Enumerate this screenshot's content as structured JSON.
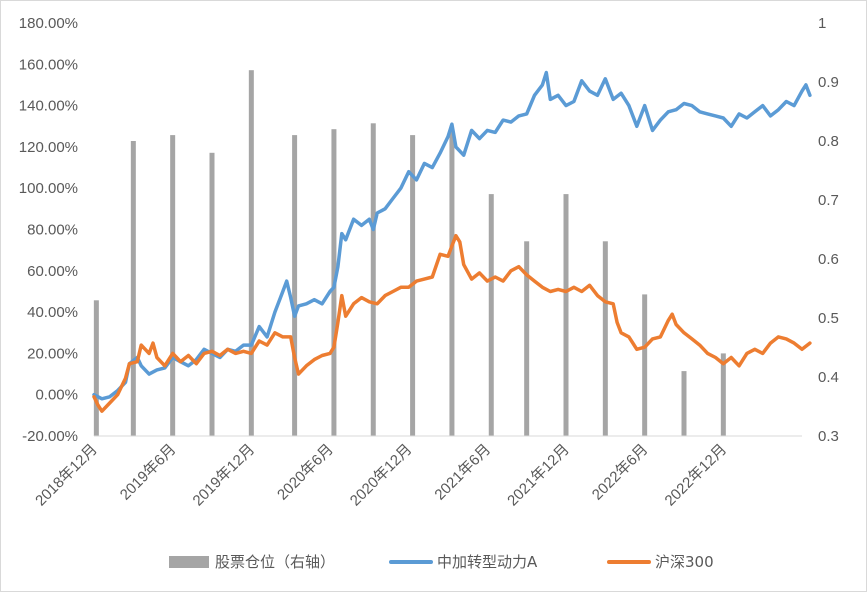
{
  "chart_data": {
    "type": "combo-bar-line",
    "title": "",
    "x_ticks": [
      "2018年12月",
      "2019年6月",
      "2019年12月",
      "2020年6月",
      "2020年12月",
      "2021年6月",
      "2021年12月",
      "2022年6月",
      "2022年12月"
    ],
    "y_left": {
      "min": -20,
      "max": 180,
      "step": 20,
      "unit": "%",
      "tick_labels": [
        "-20.00%",
        "0.00%",
        "20.00%",
        "40.00%",
        "60.00%",
        "80.00%",
        "100.00%",
        "120.00%",
        "140.00%",
        "160.00%",
        "180.00%"
      ]
    },
    "y_right": {
      "min": 0.3,
      "max": 1.0,
      "step": 0.1,
      "tick_labels": [
        "0.3",
        "0.4",
        "0.5",
        "0.6",
        "0.7",
        "0.8",
        "0.9",
        "1"
      ]
    },
    "bars": {
      "name": "股票仓位（右轴）",
      "color": "#a5a5a5",
      "axis": "right",
      "points": [
        {
          "t": 0.03,
          "v": 0.53
        },
        {
          "t": 0.5,
          "v": 0.8
        },
        {
          "t": 1.0,
          "v": 0.81
        },
        {
          "t": 1.5,
          "v": 0.78
        },
        {
          "t": 2.0,
          "v": 0.92
        },
        {
          "t": 2.55,
          "v": 0.81
        },
        {
          "t": 3.05,
          "v": 0.82
        },
        {
          "t": 3.55,
          "v": 0.83
        },
        {
          "t": 4.05,
          "v": 0.81
        },
        {
          "t": 4.55,
          "v": 0.82
        },
        {
          "t": 5.05,
          "v": 0.71
        },
        {
          "t": 5.5,
          "v": 0.63
        },
        {
          "t": 6.0,
          "v": 0.71
        },
        {
          "t": 6.5,
          "v": 0.63
        },
        {
          "t": 7.0,
          "v": 0.54
        },
        {
          "t": 7.5,
          "v": 0.41
        },
        {
          "t": 8.0,
          "v": 0.44
        }
      ]
    },
    "series": [
      {
        "name": "中加转型动力A",
        "color": "#5b9bd5",
        "axis": "left",
        "points": [
          [
            0.0,
            0
          ],
          [
            0.1,
            -2
          ],
          [
            0.2,
            -1
          ],
          [
            0.3,
            2
          ],
          [
            0.4,
            6
          ],
          [
            0.45,
            15
          ],
          [
            0.55,
            18
          ],
          [
            0.6,
            14
          ],
          [
            0.7,
            10
          ],
          [
            0.8,
            12
          ],
          [
            0.9,
            13
          ],
          [
            1.0,
            18
          ],
          [
            1.1,
            16
          ],
          [
            1.2,
            14
          ],
          [
            1.3,
            17
          ],
          [
            1.4,
            22
          ],
          [
            1.5,
            20
          ],
          [
            1.6,
            18
          ],
          [
            1.7,
            22
          ],
          [
            1.8,
            21
          ],
          [
            1.9,
            24
          ],
          [
            2.0,
            24
          ],
          [
            2.1,
            33
          ],
          [
            2.2,
            28
          ],
          [
            2.3,
            40
          ],
          [
            2.4,
            50
          ],
          [
            2.45,
            55
          ],
          [
            2.5,
            47
          ],
          [
            2.55,
            38
          ],
          [
            2.6,
            43
          ],
          [
            2.7,
            44
          ],
          [
            2.8,
            46
          ],
          [
            2.9,
            44
          ],
          [
            3.0,
            50
          ],
          [
            3.05,
            52
          ],
          [
            3.1,
            62
          ],
          [
            3.15,
            78
          ],
          [
            3.2,
            75
          ],
          [
            3.3,
            85
          ],
          [
            3.4,
            82
          ],
          [
            3.5,
            85
          ],
          [
            3.55,
            80
          ],
          [
            3.6,
            88
          ],
          [
            3.7,
            90
          ],
          [
            3.8,
            95
          ],
          [
            3.9,
            100
          ],
          [
            4.0,
            108
          ],
          [
            4.1,
            104
          ],
          [
            4.2,
            112
          ],
          [
            4.3,
            110
          ],
          [
            4.4,
            117
          ],
          [
            4.5,
            125
          ],
          [
            4.55,
            131
          ],
          [
            4.6,
            120
          ],
          [
            4.7,
            116
          ],
          [
            4.8,
            128
          ],
          [
            4.9,
            124
          ],
          [
            5.0,
            128
          ],
          [
            5.1,
            127
          ],
          [
            5.2,
            133
          ],
          [
            5.3,
            132
          ],
          [
            5.4,
            135
          ],
          [
            5.5,
            136
          ],
          [
            5.6,
            145
          ],
          [
            5.7,
            150
          ],
          [
            5.75,
            156
          ],
          [
            5.8,
            143
          ],
          [
            5.9,
            145
          ],
          [
            6.0,
            140
          ],
          [
            6.1,
            142
          ],
          [
            6.2,
            152
          ],
          [
            6.3,
            147
          ],
          [
            6.4,
            145
          ],
          [
            6.5,
            153
          ],
          [
            6.6,
            143
          ],
          [
            6.7,
            146
          ],
          [
            6.8,
            140
          ],
          [
            6.9,
            130
          ],
          [
            7.0,
            140
          ],
          [
            7.1,
            128
          ],
          [
            7.2,
            133
          ],
          [
            7.3,
            137
          ],
          [
            7.4,
            138
          ],
          [
            7.5,
            141
          ],
          [
            7.6,
            140
          ],
          [
            7.7,
            137
          ],
          [
            7.8,
            136
          ],
          [
            7.9,
            135
          ],
          [
            8.0,
            134
          ],
          [
            8.1,
            130
          ],
          [
            8.2,
            136
          ],
          [
            8.3,
            134
          ],
          [
            8.4,
            137
          ],
          [
            8.5,
            140
          ],
          [
            8.6,
            135
          ],
          [
            8.7,
            138
          ],
          [
            8.8,
            142
          ],
          [
            8.9,
            140
          ],
          [
            9.0,
            147
          ],
          [
            9.05,
            150
          ],
          [
            9.1,
            145
          ]
        ]
      },
      {
        "name": "沪深300",
        "color": "#ed7d31",
        "axis": "left",
        "points": [
          [
            0.0,
            -1
          ],
          [
            0.05,
            -5
          ],
          [
            0.1,
            -8
          ],
          [
            0.2,
            -4
          ],
          [
            0.3,
            0
          ],
          [
            0.4,
            8
          ],
          [
            0.45,
            15
          ],
          [
            0.55,
            16
          ],
          [
            0.6,
            24
          ],
          [
            0.7,
            20
          ],
          [
            0.75,
            25
          ],
          [
            0.8,
            18
          ],
          [
            0.9,
            14
          ],
          [
            1.0,
            20
          ],
          [
            1.05,
            18
          ],
          [
            1.1,
            16
          ],
          [
            1.2,
            19
          ],
          [
            1.3,
            15
          ],
          [
            1.4,
            20
          ],
          [
            1.5,
            21
          ],
          [
            1.6,
            19
          ],
          [
            1.7,
            22
          ],
          [
            1.8,
            20
          ],
          [
            1.9,
            21
          ],
          [
            2.0,
            20
          ],
          [
            2.1,
            26
          ],
          [
            2.2,
            24
          ],
          [
            2.3,
            30
          ],
          [
            2.4,
            28
          ],
          [
            2.5,
            28
          ],
          [
            2.55,
            18
          ],
          [
            2.6,
            10
          ],
          [
            2.7,
            14
          ],
          [
            2.8,
            17
          ],
          [
            2.9,
            19
          ],
          [
            3.0,
            20
          ],
          [
            3.05,
            23
          ],
          [
            3.1,
            35
          ],
          [
            3.15,
            48
          ],
          [
            3.2,
            38
          ],
          [
            3.3,
            44
          ],
          [
            3.4,
            47
          ],
          [
            3.5,
            45
          ],
          [
            3.6,
            44
          ],
          [
            3.7,
            48
          ],
          [
            3.8,
            50
          ],
          [
            3.9,
            52
          ],
          [
            4.0,
            52
          ],
          [
            4.1,
            55
          ],
          [
            4.2,
            56
          ],
          [
            4.3,
            57
          ],
          [
            4.4,
            68
          ],
          [
            4.5,
            67
          ],
          [
            4.55,
            72
          ],
          [
            4.6,
            77
          ],
          [
            4.65,
            74
          ],
          [
            4.7,
            63
          ],
          [
            4.8,
            56
          ],
          [
            4.9,
            59
          ],
          [
            5.0,
            55
          ],
          [
            5.1,
            57
          ],
          [
            5.2,
            55
          ],
          [
            5.3,
            60
          ],
          [
            5.4,
            62
          ],
          [
            5.5,
            58
          ],
          [
            5.6,
            55
          ],
          [
            5.7,
            52
          ],
          [
            5.8,
            50
          ],
          [
            5.9,
            51
          ],
          [
            6.0,
            50
          ],
          [
            6.1,
            52
          ],
          [
            6.2,
            50
          ],
          [
            6.3,
            53
          ],
          [
            6.4,
            48
          ],
          [
            6.5,
            45
          ],
          [
            6.6,
            44
          ],
          [
            6.65,
            35
          ],
          [
            6.7,
            30
          ],
          [
            6.8,
            28
          ],
          [
            6.9,
            22
          ],
          [
            7.0,
            23
          ],
          [
            7.1,
            27
          ],
          [
            7.2,
            28
          ],
          [
            7.3,
            36
          ],
          [
            7.35,
            39
          ],
          [
            7.4,
            34
          ],
          [
            7.5,
            30
          ],
          [
            7.6,
            27
          ],
          [
            7.7,
            24
          ],
          [
            7.8,
            20
          ],
          [
            7.9,
            18
          ],
          [
            8.0,
            15
          ],
          [
            8.1,
            18
          ],
          [
            8.2,
            14
          ],
          [
            8.3,
            20
          ],
          [
            8.4,
            22
          ],
          [
            8.5,
            20
          ],
          [
            8.6,
            25
          ],
          [
            8.7,
            28
          ],
          [
            8.8,
            27
          ],
          [
            8.9,
            25
          ],
          [
            9.0,
            22
          ],
          [
            9.1,
            25
          ]
        ]
      }
    ],
    "legend": {
      "position": "bottom",
      "items": [
        {
          "label": "股票仓位（右轴）",
          "kind": "bar",
          "color": "#a5a5a5"
        },
        {
          "label": "中加转型动力A",
          "kind": "line",
          "color": "#5b9bd5"
        },
        {
          "label": "沪深300",
          "kind": "line",
          "color": "#ed7d31"
        }
      ]
    }
  }
}
